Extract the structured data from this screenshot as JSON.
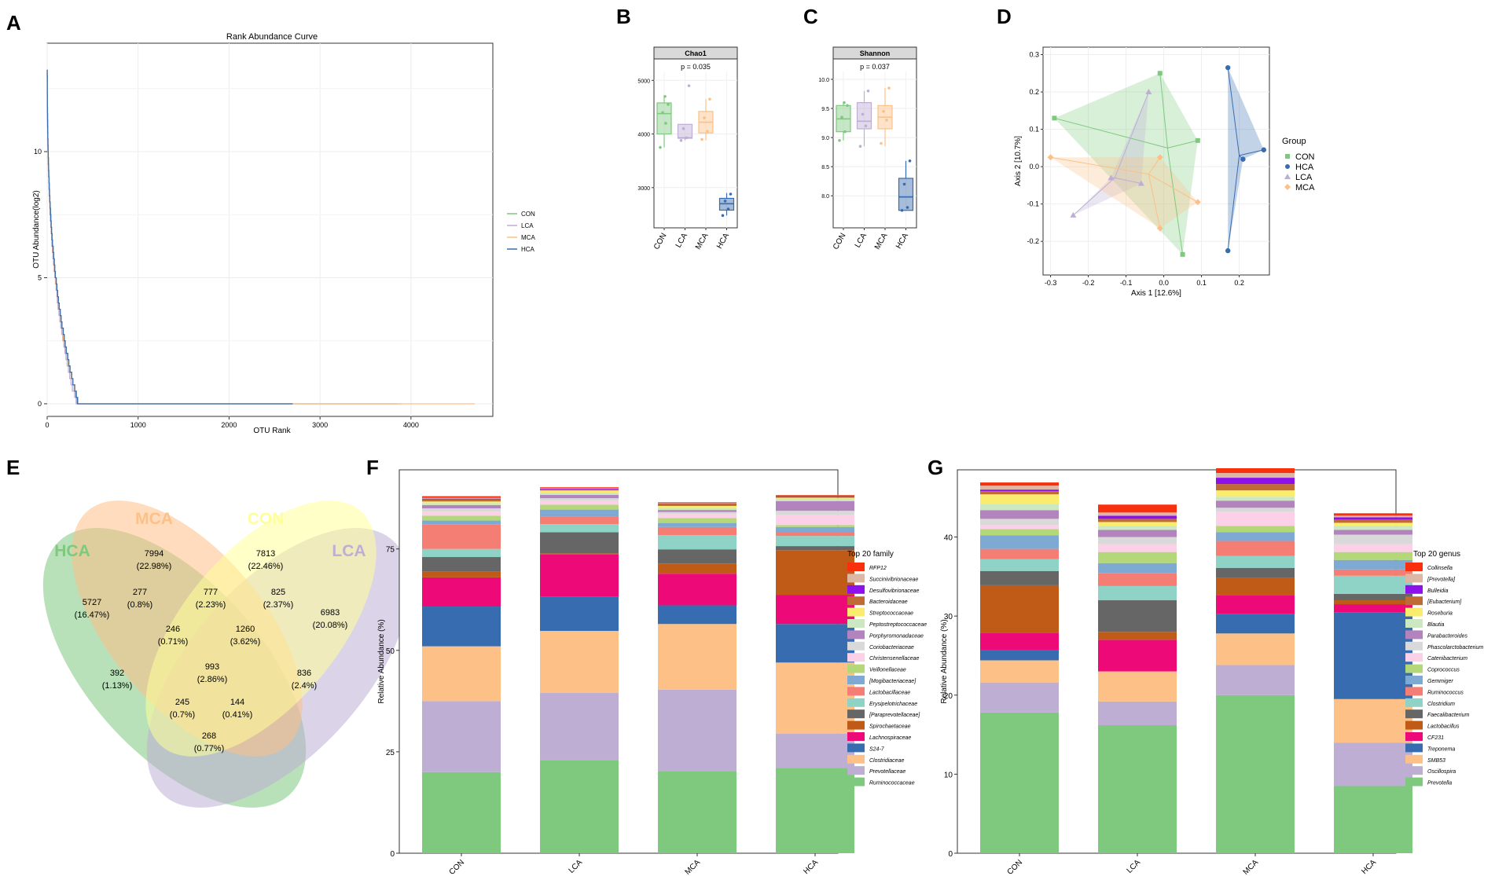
{
  "panels": {
    "A": "A",
    "B": "B",
    "C": "C",
    "D": "D",
    "E": "E",
    "F": "F",
    "G": "G"
  },
  "colors": {
    "CON": "#7fc97f",
    "LCA": "#beaed4",
    "MCA": "#fdc086",
    "HCA": "#386cb0",
    "venn_HCA": "#7fc97f",
    "venn_MCA": "#fdc086",
    "venn_CON": "#ffff99",
    "venn_LCA": "#beaed4"
  },
  "chart_data": [
    {
      "id": "A",
      "type": "line",
      "title": "Rank Abundance Curve",
      "xlabel": "OTU Rank",
      "ylabel": "OTU Abundance(log2)",
      "xlim": [
        0,
        4900
      ],
      "ylim": [
        -0.5,
        14.3
      ],
      "xticks": [
        0,
        1000,
        2000,
        3000,
        4000
      ],
      "yticks": [
        0,
        5,
        10
      ],
      "legend": [
        "CON",
        "LCA",
        "MCA",
        "HCA"
      ],
      "series": [
        {
          "name": "CON",
          "max_rank": 3850,
          "top": 13.3
        },
        {
          "name": "LCA",
          "max_rank": 3900,
          "top": 13.0
        },
        {
          "name": "MCA",
          "max_rank": 4700,
          "top": 13.2
        },
        {
          "name": "HCA",
          "max_rank": 2700,
          "top": 13.3
        }
      ]
    },
    {
      "id": "B",
      "type": "box",
      "strip_label": "Chao1",
      "pvalue": "p = 0.035",
      "ylim": [
        2250,
        5400
      ],
      "yticks": [
        3000,
        4000,
        5000
      ],
      "categories": [
        "CON",
        "LCA",
        "MCA",
        "HCA"
      ],
      "boxes": [
        {
          "min": 3750,
          "q1": 4000,
          "median": 4380,
          "q3": 4580,
          "max": 4720,
          "points": [
            3750,
            4200,
            4400,
            4550,
            4700
          ]
        },
        {
          "min": 3880,
          "q1": 3920,
          "median": 3930,
          "q3": 4180,
          "max": 4180,
          "outliers": [
            4900
          ],
          "points": [
            3880,
            3930,
            4100,
            4900
          ]
        },
        {
          "min": 3880,
          "q1": 4020,
          "median": 4220,
          "q3": 4420,
          "max": 4650,
          "points": [
            3900,
            4050,
            4300,
            4650
          ]
        },
        {
          "min": 2480,
          "q1": 2580,
          "median": 2700,
          "q3": 2800,
          "max": 2900,
          "points": [
            2480,
            2600,
            2750,
            2880
          ]
        }
      ]
    },
    {
      "id": "C",
      "type": "box",
      "strip_label": "Shannon",
      "pvalue": "p = 0.037",
      "ylim": [
        7.45,
        10.35
      ],
      "yticks": [
        8.0,
        8.5,
        9.0,
        9.5,
        10.0
      ],
      "ytick_labels": [
        "8.0",
        "8.5",
        "9.0",
        "9.5",
        "10.0"
      ],
      "categories": [
        "CON",
        "LCA",
        "MCA",
        "HCA"
      ],
      "boxes": [
        {
          "min": 8.95,
          "q1": 9.1,
          "median": 9.32,
          "q3": 9.55,
          "max": 9.6,
          "points": [
            8.95,
            9.1,
            9.35,
            9.55,
            9.6
          ]
        },
        {
          "min": 8.85,
          "q1": 9.15,
          "median": 9.28,
          "q3": 9.6,
          "max": 9.8,
          "points": [
            8.85,
            9.2,
            9.4,
            9.8
          ]
        },
        {
          "min": 8.85,
          "q1": 9.15,
          "median": 9.35,
          "q3": 9.55,
          "max": 9.85,
          "points": [
            8.9,
            9.3,
            9.45,
            9.85
          ]
        },
        {
          "min": 7.75,
          "q1": 7.75,
          "median": 7.98,
          "q3": 8.3,
          "max": 8.6,
          "points": [
            7.75,
            7.8,
            8.2,
            8.6
          ]
        }
      ]
    },
    {
      "id": "D",
      "type": "scatter",
      "xlabel": "Axis 1 [12.6%]",
      "ylabel": "Axis 2 [10.7%]",
      "xlim": [
        -0.32,
        0.28
      ],
      "ylim": [
        -0.29,
        0.32
      ],
      "xticks": [
        -0.3,
        -0.2,
        -0.1,
        0.0,
        0.1,
        0.2
      ],
      "xtick_labels": [
        "-0.3",
        "-0.2",
        "-0.1",
        "0.0",
        "0.1",
        "0.2"
      ],
      "yticks": [
        -0.2,
        -0.1,
        0.0,
        0.1,
        0.2,
        0.3
      ],
      "ytick_labels": [
        "-0.2",
        "-0.1",
        "0.0",
        "0.1",
        "0.2",
        "0.3"
      ],
      "legend_title": "Group",
      "legend": [
        "CON",
        "HCA",
        "LCA",
        "MCA"
      ],
      "groups": [
        {
          "name": "CON",
          "centroid": [
            0.01,
            0.05
          ],
          "points": [
            [
              -0.29,
              0.13
            ],
            [
              -0.01,
              0.25
            ],
            [
              0.09,
              0.07
            ],
            [
              0.05,
              -0.235
            ]
          ]
        },
        {
          "name": "HCA",
          "centroid": [
            0.2,
            0.03
          ],
          "points": [
            [
              0.17,
              0.265
            ],
            [
              0.21,
              0.02
            ],
            [
              0.265,
              0.045
            ],
            [
              0.17,
              -0.225
            ]
          ]
        },
        {
          "name": "LCA",
          "centroid": [
            -0.13,
            -0.03
          ],
          "points": [
            [
              -0.04,
              0.2
            ],
            [
              -0.14,
              -0.03
            ],
            [
              -0.24,
              -0.13
            ],
            [
              -0.06,
              -0.045
            ]
          ]
        },
        {
          "name": "MCA",
          "centroid": [
            -0.04,
            -0.02
          ],
          "points": [
            [
              -0.3,
              0.025
            ],
            [
              -0.01,
              0.025
            ],
            [
              0.09,
              -0.095
            ],
            [
              -0.01,
              -0.165
            ]
          ]
        }
      ]
    },
    {
      "id": "E",
      "type": "venn",
      "sets": [
        "HCA",
        "MCA",
        "CON",
        "LCA"
      ],
      "regions": [
        {
          "count": "7994",
          "pct": "(22.98%)"
        },
        {
          "count": "7813",
          "pct": "(22.46%)"
        },
        {
          "count": "277",
          "pct": "(0.8%)"
        },
        {
          "count": "777",
          "pct": "(2.23%)"
        },
        {
          "count": "825",
          "pct": "(2.37%)"
        },
        {
          "count": "5727",
          "pct": "(16.47%)"
        },
        {
          "count": "246",
          "pct": "(0.71%)"
        },
        {
          "count": "1260",
          "pct": "(3.62%)"
        },
        {
          "count": "6983",
          "pct": "(20.08%)"
        },
        {
          "count": "993",
          "pct": "(2.86%)"
        },
        {
          "count": "392",
          "pct": "(1.13%)"
        },
        {
          "count": "836",
          "pct": "(2.4%)"
        },
        {
          "count": "245",
          "pct": "(0.7%)"
        },
        {
          "count": "144",
          "pct": "(0.41%)"
        },
        {
          "count": "268",
          "pct": "(0.77%)"
        }
      ]
    },
    {
      "id": "F",
      "type": "stacked_bar",
      "ylabel": "Relative Abundance (%)",
      "ylim": [
        0,
        94.5
      ],
      "yticks": [
        0,
        25,
        50,
        75
      ],
      "categories": [
        "CON",
        "LCA",
        "MCA",
        "HCA"
      ],
      "legend_title": "Top 20 family",
      "legend": [
        "RFP12",
        "Succinivibrionaceae",
        "Desulfovibrionaceae",
        "Bacteroidaceae",
        "Streptococcaceae",
        "Peptostreptococcaceae",
        "Porphyromonadaceae",
        "Coriobacteriaceae",
        "Christensenellaceae",
        "Veillonellaceae",
        "[Mogibacteriaceae]",
        "Lactobacillaceae",
        "Erysipelotrichaceae",
        "[Paraprevotellaceae]",
        "Spirochaetaceae",
        "Lachnospiraceae",
        "S24-7",
        "Clostridiaceae",
        "Prevotellaceae",
        "Ruminococcaceae"
      ],
      "series": [
        {
          "name": "Ruminococcaceae",
          "values": [
            20,
            23,
            20.3,
            21
          ]
        },
        {
          "name": "Prevotellaceae",
          "values": [
            17.5,
            16.5,
            20,
            8.5
          ]
        },
        {
          "name": "Clostridiaceae",
          "values": [
            13.5,
            15.3,
            16.2,
            17.5
          ]
        },
        {
          "name": "S24-7",
          "values": [
            9.8,
            8.5,
            4.6,
            9.5
          ]
        },
        {
          "name": "Lachnospiraceae",
          "values": [
            7.2,
            10.3,
            7.8,
            7.2
          ]
        },
        {
          "name": "Spirochaetaceae",
          "values": [
            1.5,
            0.3,
            2.5,
            11
          ]
        },
        {
          "name": "[Paraprevotellaceae]",
          "values": [
            3.5,
            5.2,
            3.5,
            1
          ]
        },
        {
          "name": "Erysipelotrichaceae",
          "values": [
            2,
            2,
            3.5,
            2.5
          ]
        },
        {
          "name": "Lactobacillaceae",
          "values": [
            6,
            1.8,
            2,
            1
          ]
        },
        {
          "name": "[Mogibacteriaceae]",
          "values": [
            1,
            1.8,
            1,
            1.2
          ]
        },
        {
          "name": "Veillonellaceae",
          "values": [
            1.2,
            1.2,
            1.2,
            0.5
          ]
        },
        {
          "name": "Christensenellaceae",
          "values": [
            1,
            1,
            1,
            2.5
          ]
        },
        {
          "name": "Coriobacteriaceae",
          "values": [
            0.8,
            0.6,
            0.5,
            1
          ]
        },
        {
          "name": "Porphyromonadaceae",
          "values": [
            0.8,
            0.8,
            0.5,
            2.4
          ]
        },
        {
          "name": "Peptostreptococcaceae",
          "values": [
            0.5,
            0.6,
            0.5,
            0.6
          ]
        },
        {
          "name": "Streptococcaceae",
          "values": [
            0.4,
            0.5,
            0.5,
            0.2
          ]
        },
        {
          "name": "Bacteroidaceae",
          "values": [
            0.5,
            0.3,
            0.5,
            0.3
          ]
        },
        {
          "name": "Desulfovibrionaceae",
          "values": [
            0.2,
            0.2,
            0.1,
            0.2
          ]
        },
        {
          "name": "Succinivibrionaceae",
          "values": [
            0.2,
            0.1,
            0.1,
            0.1
          ]
        },
        {
          "name": "RFP12",
          "values": [
            0.4,
            0.2,
            0.2,
            0.1
          ]
        }
      ]
    },
    {
      "id": "G",
      "type": "stacked_bar",
      "ylabel": "Relative Abundance (%)",
      "ylim": [
        0,
        48.5
      ],
      "yticks": [
        0,
        10,
        20,
        30,
        40
      ],
      "categories": [
        "CON",
        "LCA",
        "MCA",
        "HCA"
      ],
      "legend_title": "Top 20 genus",
      "legend": [
        "Collinsella",
        "[Prevotella]",
        "Bulleidia",
        "[Eubacterium]",
        "Roseburia",
        "Blautia",
        "Parabacteroides",
        "Phascolarctobacterium",
        "Catenibacterium",
        "Coprococcus",
        "Gemmiger",
        "Ruminococcus",
        "Clostridium",
        "Faecalibacterium",
        "Lactobacillus",
        "CF231",
        "Treponema",
        "SMB53",
        "Oscillospira",
        "Prevotella"
      ],
      "series": [
        {
          "name": "Prevotella",
          "values": [
            17.8,
            16.2,
            20,
            8.5
          ]
        },
        {
          "name": "Oscillospira",
          "values": [
            3.8,
            3,
            3.8,
            5.5
          ]
        },
        {
          "name": "SMB53",
          "values": [
            2.8,
            3.8,
            4,
            5.5
          ]
        },
        {
          "name": "Treponema",
          "values": [
            1.3,
            0,
            2.5,
            11
          ]
        },
        {
          "name": "CF231",
          "values": [
            2.2,
            4,
            2.3,
            1
          ]
        },
        {
          "name": "Lactobacillus",
          "values": [
            6,
            1,
            2.2,
            0.5
          ]
        },
        {
          "name": "Faecalibacterium",
          "values": [
            1.8,
            4,
            1.3,
            0.8
          ]
        },
        {
          "name": "Clostridium",
          "values": [
            1.5,
            1.8,
            1.5,
            2.3
          ]
        },
        {
          "name": "Ruminococcus",
          "values": [
            1.3,
            1.6,
            1.9,
            0.8
          ]
        },
        {
          "name": "Gemmiger",
          "values": [
            1.7,
            1.3,
            1.1,
            1.2
          ]
        },
        {
          "name": "Coprococcus",
          "values": [
            0.8,
            1.4,
            0.8,
            1
          ]
        },
        {
          "name": "Catenibacterium",
          "values": [
            0.5,
            1,
            1.8,
            1
          ]
        },
        {
          "name": "Phascolarctobacterium",
          "values": [
            0.8,
            0.9,
            0.5,
            1.2
          ]
        },
        {
          "name": "Parabacteroides",
          "values": [
            1.1,
            0.9,
            0.9,
            0.6
          ]
        },
        {
          "name": "Blautia",
          "values": [
            0.8,
            0.5,
            0.5,
            0.5
          ]
        },
        {
          "name": "Roseburia",
          "values": [
            1.2,
            0.5,
            0.8,
            0.4
          ]
        },
        {
          "name": "[Eubacterium]",
          "values": [
            0.4,
            0.4,
            0.8,
            0.4
          ]
        },
        {
          "name": "Bulleidia",
          "values": [
            0.2,
            0.4,
            0.8,
            0.3
          ]
        },
        {
          "name": "[Prevotella]",
          "values": [
            0.5,
            0.4,
            0.6,
            0.2
          ]
        },
        {
          "name": "Collinsella",
          "values": [
            0.4,
            1,
            0.6,
            0.3
          ]
        }
      ]
    }
  ],
  "family_colors": [
    "#f8300d",
    "#dcb7a4",
    "#8e11ec",
    "#c06b33",
    "#faec6c",
    "#cbe8c3",
    "#b383bd",
    "#d9d9d9",
    "#fcd0e7",
    "#b4d77a",
    "#7ea9d2",
    "#f47e74",
    "#8fd3c7",
    "#666666",
    "#bf5b17",
    "#ed0a78",
    "#386cb0",
    "#fdc086",
    "#beaed4",
    "#7fc97f"
  ]
}
